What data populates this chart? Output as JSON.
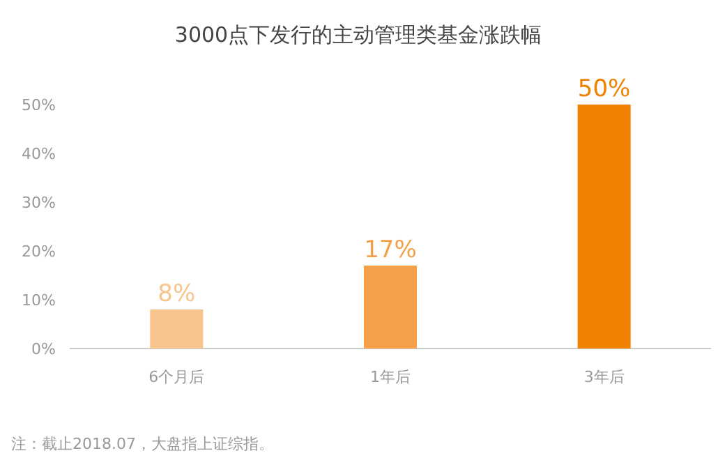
{
  "chart_data": {
    "type": "bar",
    "title": "3000点下发行的主动管理类基金涨跌幅",
    "categories": [
      "6个月后",
      "1年后",
      "3年后"
    ],
    "values": [
      8,
      17,
      50
    ],
    "colors": [
      "#f8c48e",
      "#f4a04a",
      "#ef8200"
    ],
    "value_labels": [
      "8%",
      "17%",
      "50%"
    ],
    "ylim": [
      0,
      50
    ],
    "yticks": [
      {
        "value": 0,
        "label": "0%"
      },
      {
        "value": 10,
        "label": "10%"
      },
      {
        "value": 20,
        "label": "20%"
      },
      {
        "value": 30,
        "label": "30%"
      },
      {
        "value": 40,
        "label": "40%"
      },
      {
        "value": 50,
        "label": "50%"
      }
    ],
    "annotations": [
      "注：截止2018.07，大盘指上证综指。"
    ]
  }
}
